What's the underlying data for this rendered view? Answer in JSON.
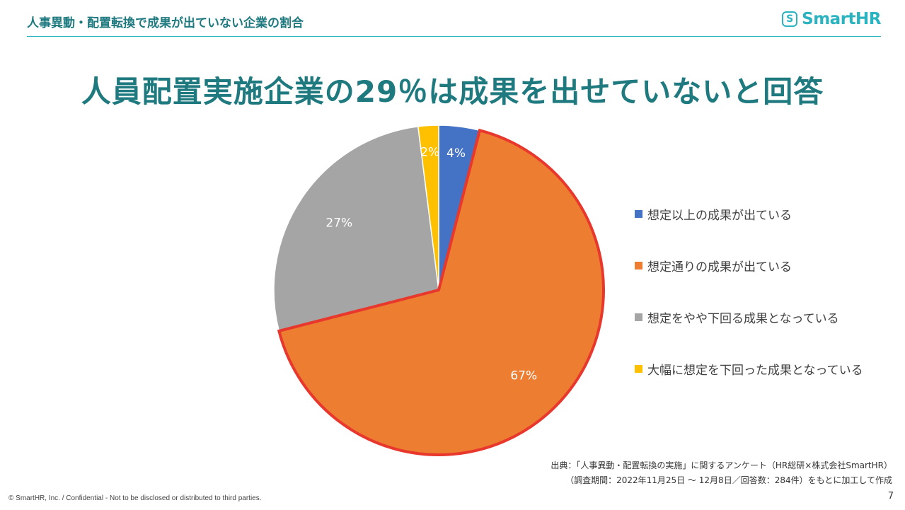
{
  "header": {
    "title": "人事異動・配置転換で成果が出ていない企業の割合",
    "logo_mark": "S",
    "logo_text": "SmartHR"
  },
  "headline": "人員配置実施企業の29％は成果を出せていないと回答",
  "colors": {
    "accent": "#1f7a80",
    "brand": "#2bb3c0",
    "highlight_border": "#e8382d"
  },
  "chart_data": {
    "type": "pie",
    "title": "",
    "start": "top",
    "direction": "clockwise",
    "slices": [
      {
        "label": "想定以上の成果が出ている",
        "value": 4,
        "display": "4%",
        "color": "#4472c4",
        "highlighted": false,
        "label_color": "#ffffff"
      },
      {
        "label": "想定通りの成果が出ている",
        "value": 67,
        "display": "67%",
        "color": "#ed7d31",
        "highlighted": true,
        "label_color": "#ffffff"
      },
      {
        "label": "想定をやや下回る成果となっている",
        "value": 27,
        "display": "27%",
        "color": "#a5a5a5",
        "highlighted": false,
        "label_color": "#ffffff"
      },
      {
        "label": "大幅に想定を下回った成果となっている",
        "value": 2,
        "display": "2%",
        "color": "#ffc000",
        "highlighted": false,
        "label_color": "#ffffff"
      }
    ],
    "legend_position": "right"
  },
  "source": {
    "line1": "出典：「人事異動・配置転換の実施」に関するアンケート（HR総研×株式会社SmartHR）",
    "line2": "（調査期間：2022年11月25日 〜 12月8日／回答数：284件）をもとに加工して作成"
  },
  "footer": "© SmartHR, Inc. / Confidential - Not to be disclosed or distributed to third parties.",
  "page_number": "7"
}
